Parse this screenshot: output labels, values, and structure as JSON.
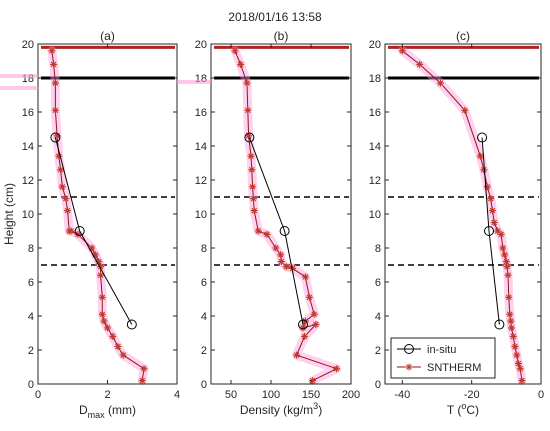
{
  "figure_title": "2018/01/16 13:58",
  "legend": {
    "insitu": "in-situ",
    "sntherm": "SNTHERM",
    "placement": "bottom-right of panel (c)"
  },
  "colors": {
    "axis": "#262626",
    "insitu_line": "#000000",
    "sntherm_line": "#8b1a1a",
    "sntherm_marker": "#c0392b",
    "sntherm_glow": "#ff99dd",
    "top_bar": "#b22222",
    "black_bar": "#000000"
  },
  "chart_data": [
    {
      "type": "line",
      "panel_label": "(a)",
      "xlabel_main": "D",
      "xlabel_sub": "max",
      "xlabel_unit": " (mm)",
      "ylabel": "Height (cm)",
      "xlim": [
        0,
        4
      ],
      "ylim": [
        0,
        20
      ],
      "xticks": [
        0,
        2,
        4
      ],
      "yticks": [
        0,
        2,
        4,
        6,
        8,
        10,
        12,
        14,
        16,
        18,
        20
      ],
      "grid": false,
      "reference_lines": {
        "solid_red": 19.8,
        "solid_black": 18.0,
        "dashed": [
          11.0,
          7.0
        ]
      },
      "series": [
        {
          "name": "in-situ",
          "x": [
            0.5,
            1.2,
            2.7
          ],
          "y": [
            14.5,
            9.0,
            3.5
          ]
        },
        {
          "name": "SNTHERM",
          "x": [
            0.4,
            0.45,
            0.5,
            0.5,
            0.55,
            0.6,
            0.65,
            0.7,
            0.8,
            0.85,
            0.9,
            0.95,
            1.15,
            1.55,
            1.65,
            1.75,
            1.8,
            1.8,
            1.85,
            1.85,
            1.9,
            2.0,
            2.15,
            2.3,
            2.45,
            3.05,
            3.0
          ],
          "y": [
            19.6,
            18.8,
            17.7,
            16.1,
            14.6,
            13.4,
            12.6,
            11.6,
            10.9,
            10.2,
            9.0,
            9.0,
            8.8,
            8.0,
            7.6,
            7.2,
            6.9,
            6.4,
            5.1,
            4.1,
            3.7,
            3.3,
            2.8,
            2.2,
            1.7,
            0.9,
            0.2
          ]
        }
      ]
    },
    {
      "type": "line",
      "panel_label": "(b)",
      "xlabel": "Density (kg/m",
      "xlabel_sup": "3",
      "xlabel_end": ")",
      "xlim": [
        25,
        200
      ],
      "ylim": [
        0,
        20
      ],
      "xticks": [
        50,
        100,
        150,
        200
      ],
      "yticks": [
        0,
        2,
        4,
        6,
        8,
        10,
        12,
        14,
        16,
        18,
        20
      ],
      "grid": false,
      "reference_lines": {
        "solid_red": 19.8,
        "solid_black": 18.0,
        "dashed": [
          11.0,
          7.0
        ]
      },
      "series": [
        {
          "name": "in-situ",
          "x": [
            73,
            117,
            140
          ],
          "y": [
            14.5,
            9.0,
            3.5
          ]
        },
        {
          "name": "SNTHERM",
          "x": [
            55,
            62,
            70,
            71,
            72,
            75,
            76,
            77,
            78,
            79,
            84,
            95,
            106,
            112,
            113,
            119,
            127,
            143,
            148,
            154,
            143,
            140,
            156,
            142,
            132,
            182,
            152
          ],
          "y": [
            19.6,
            18.8,
            17.7,
            16.1,
            14.6,
            13.4,
            12.6,
            11.6,
            10.9,
            10.2,
            9.0,
            8.8,
            8.0,
            7.6,
            7.2,
            6.9,
            6.8,
            6.3,
            5.1,
            4.1,
            3.7,
            3.3,
            3.5,
            2.8,
            1.7,
            0.9,
            0.2
          ]
        }
      ]
    },
    {
      "type": "line",
      "panel_label": "(c)",
      "xlabel": "T (",
      "xlabel_sup": "o",
      "xlabel_end": "C)",
      "xlim": [
        -45,
        0
      ],
      "ylim": [
        0,
        20
      ],
      "xticks": [
        -40,
        -20,
        0
      ],
      "yticks": [
        0,
        2,
        4,
        6,
        8,
        10,
        12,
        14,
        16,
        18,
        20
      ],
      "grid": false,
      "reference_lines": {
        "solid_red": 19.8,
        "solid_black": 18.0,
        "dashed": [
          11.0,
          7.0
        ]
      },
      "series": [
        {
          "name": "in-situ",
          "x": [
            -17,
            -15,
            -12
          ],
          "y": [
            14.5,
            9.0,
            3.5
          ]
        },
        {
          "name": "SNTHERM",
          "x": [
            -40,
            -35,
            -29,
            -22,
            -17.5,
            -16.5,
            -15.5,
            -14.5,
            -14,
            -13.5,
            -12.5,
            -11.5,
            -11,
            -10.5,
            -10,
            -9.8,
            -9.5,
            -9.3,
            -9,
            -8.7,
            -8.5,
            -8,
            -7.5,
            -7,
            -6.5,
            -6,
            -5.5
          ],
          "y": [
            19.6,
            18.8,
            17.7,
            16.1,
            13.4,
            12.6,
            11.6,
            10.9,
            10.2,
            9.5,
            9.0,
            8.8,
            8.0,
            7.6,
            7.2,
            6.9,
            6.4,
            5.1,
            4.1,
            3.7,
            3.3,
            2.8,
            2.2,
            1.7,
            1.2,
            0.9,
            0.2
          ]
        }
      ]
    }
  ]
}
